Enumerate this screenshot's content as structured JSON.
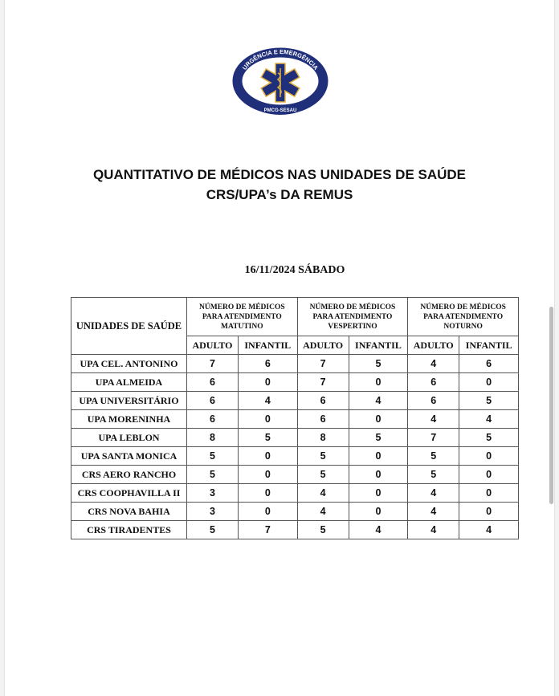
{
  "logo": {
    "top_text": "URGÊNCIA E EMERGÊNCIA",
    "bottom_text": "PMCG-SESAU",
    "icon": "star-of-life-icon",
    "colors": {
      "primary": "#1f2f7a",
      "accent": "#e3b040"
    }
  },
  "title_line1": "QUANTITATIVO DE MÉDICOS NAS UNIDADES DE SAÚDE",
  "title_line2": "CRS/UPA’s DA REMUS",
  "date": "16/11/2024 SÁBADO",
  "table": {
    "unit_header": "UNIDADES DE SAÚDE",
    "groups": [
      {
        "line1": "NÚMERO DE MÉDICOS",
        "line2": "PARA ATENDIMENTO",
        "line3": "MATUTINO"
      },
      {
        "line1": "NÚMERO DE MÉDICOS",
        "line2": "PARA ATENDIMENTO",
        "line3": "VESPERTINO"
      },
      {
        "line1": "NÚMERO DE MÉDICOS",
        "line2": "PARA ATENDIMENTO",
        "line3": "NOTURNO"
      }
    ],
    "subheaders": [
      "ADULTO",
      "INFANTIL",
      "ADULTO",
      "INFANTIL",
      "ADULTO",
      "INFANTIL"
    ],
    "rows": [
      {
        "unit": "UPA CEL. ANTONINO",
        "values": [
          "7",
          "6",
          "7",
          "5",
          "4",
          "6"
        ]
      },
      {
        "unit": "UPA ALMEIDA",
        "values": [
          "6",
          "0",
          "7",
          "0",
          "6",
          "0"
        ]
      },
      {
        "unit": "UPA UNIVERSITÁRIO",
        "values": [
          "6",
          "4",
          "6",
          "4",
          "6",
          "5"
        ]
      },
      {
        "unit": "UPA MORENINHA",
        "values": [
          "6",
          "0",
          "6",
          "0",
          "4",
          "4"
        ]
      },
      {
        "unit": "UPA LEBLON",
        "values": [
          "8",
          "5",
          "8",
          "5",
          "7",
          "5"
        ]
      },
      {
        "unit": "UPA SANTA MONICA",
        "values": [
          "5",
          "0",
          "5",
          "0",
          "5",
          "0"
        ]
      },
      {
        "unit": "CRS AERO RANCHO",
        "values": [
          "5",
          "0",
          "5",
          "0",
          "5",
          "0"
        ]
      },
      {
        "unit": "CRS COOPHAVILLA II",
        "values": [
          "3",
          "0",
          "4",
          "0",
          "4",
          "0"
        ]
      },
      {
        "unit": "CRS NOVA BAHIA",
        "values": [
          "3",
          "0",
          "4",
          "0",
          "4",
          "0"
        ]
      },
      {
        "unit": "CRS TIRADENTES",
        "values": [
          "5",
          "7",
          "5",
          "4",
          "4",
          "4"
        ]
      }
    ]
  }
}
